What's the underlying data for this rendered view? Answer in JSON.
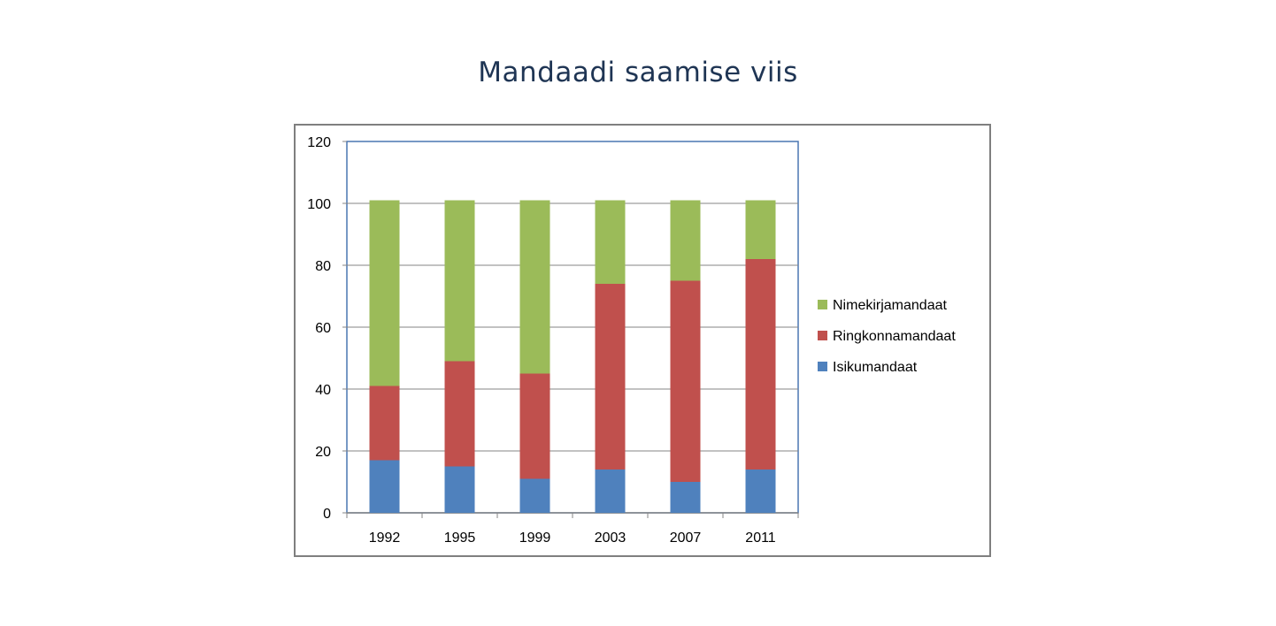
{
  "chart_data": {
    "type": "bar",
    "stacked": true,
    "title": "Mandaadi saamise viis",
    "xlabel": "",
    "ylabel": "",
    "categories": [
      "1992",
      "1995",
      "1999",
      "2003",
      "2007",
      "2011"
    ],
    "ylim": [
      0,
      120
    ],
    "yticks": [
      "0",
      "20",
      "40",
      "60",
      "80",
      "100",
      "120"
    ],
    "grid": true,
    "legend_position": "right",
    "series": [
      {
        "name": "Isikumandaat",
        "color": "#4f81bd",
        "values": [
          17,
          15,
          11,
          14,
          10,
          14
        ]
      },
      {
        "name": "Ringkonnamandaat",
        "color": "#c0504d",
        "values": [
          24,
          34,
          34,
          60,
          65,
          68
        ]
      },
      {
        "name": "Nimekirjamandaat",
        "color": "#9bbb59",
        "values": [
          60,
          52,
          56,
          27,
          26,
          19
        ]
      }
    ],
    "legend_order": [
      "Nimekirjamandaat",
      "Ringkonnamandaat",
      "Isikumandaat"
    ]
  }
}
